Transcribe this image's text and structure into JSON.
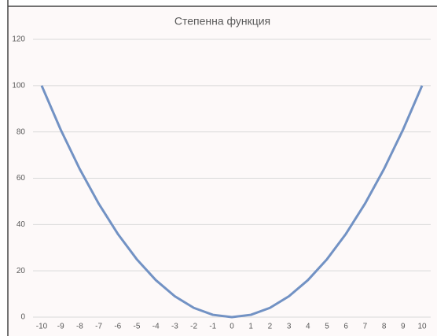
{
  "chart_data": {
    "type": "line",
    "title": "Степенна функция",
    "x": [
      -10,
      -9,
      -8,
      -7,
      -6,
      -5,
      -4,
      -3,
      -2,
      -1,
      0,
      1,
      2,
      3,
      4,
      5,
      6,
      7,
      8,
      9,
      10
    ],
    "values": [
      100,
      81,
      64,
      49,
      36,
      25,
      16,
      9,
      4,
      1,
      0,
      1,
      4,
      9,
      16,
      25,
      36,
      49,
      64,
      81,
      100
    ],
    "color": "#7292c4",
    "xlim": [
      -10,
      10
    ],
    "ylim": [
      0,
      120
    ],
    "yticks": [
      0,
      20,
      40,
      60,
      80,
      100,
      120
    ],
    "grid": true
  }
}
